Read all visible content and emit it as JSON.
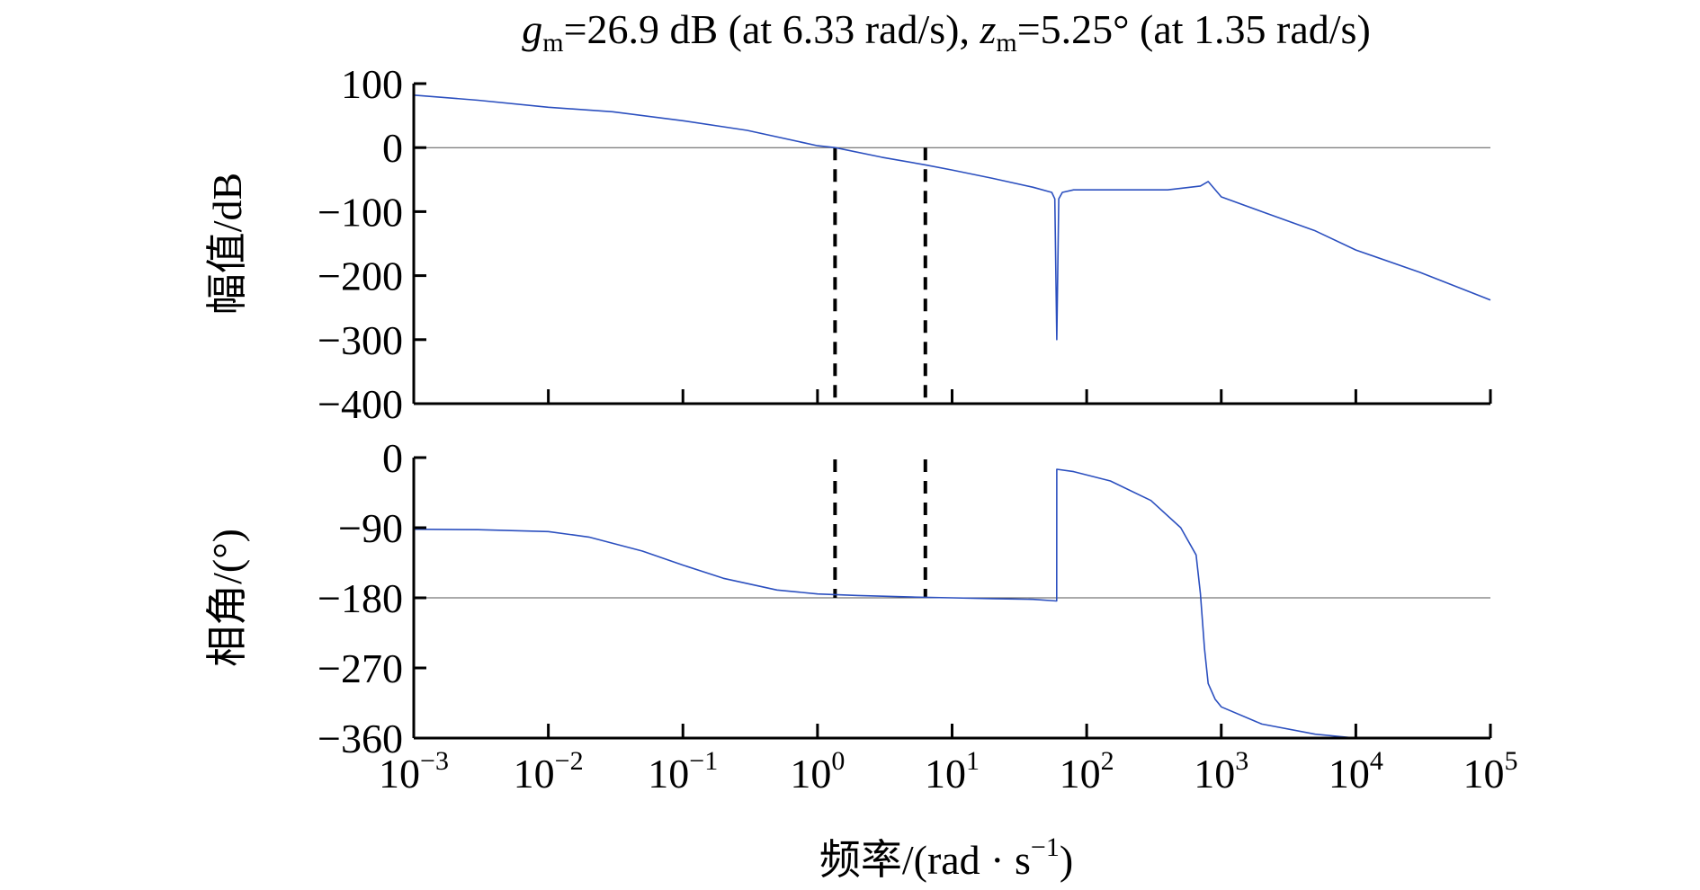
{
  "chart_data": {
    "type": "line",
    "title": {
      "g_symbol": "g",
      "g_sub": "m",
      "g_text": "=26.9 dB (at 6.33 rad/s), ",
      "z_symbol": "z",
      "z_sub": "m",
      "z_text": "=5.25° (at 1.35 rad/s)"
    },
    "xlabel": {
      "text": "频率/(rad · s",
      "sup": "−1",
      "close": ")"
    },
    "x_scale": "log",
    "xlim": [
      0.001,
      100000
    ],
    "x_ticks": [
      {
        "value": 0.001,
        "base": "10",
        "exp": "−3"
      },
      {
        "value": 0.01,
        "base": "10",
        "exp": "−2"
      },
      {
        "value": 0.1,
        "base": "10",
        "exp": "−1"
      },
      {
        "value": 1,
        "base": "10",
        "exp": "0"
      },
      {
        "value": 10,
        "base": "10",
        "exp": "1"
      },
      {
        "value": 100,
        "base": "10",
        "exp": "2"
      },
      {
        "value": 1000,
        "base": "10",
        "exp": "3"
      },
      {
        "value": 10000,
        "base": "10",
        "exp": "4"
      },
      {
        "value": 100000,
        "base": "10",
        "exp": "5"
      }
    ],
    "gain_crossover_freq": 1.35,
    "phase_crossover_freq": 6.33,
    "line_color": "#2b4fbf",
    "panels": [
      {
        "id": "magnitude",
        "ylabel": "幅值/dB",
        "ylim": [
          -400,
          100
        ],
        "y_ticks": [
          100,
          0,
          -100,
          -200,
          -300,
          -400
        ],
        "y_tick_labels": [
          "100",
          "0",
          "−100",
          "−200",
          "−300",
          "−400"
        ],
        "reference_line": 0,
        "series": {
          "x": [
            0.001,
            0.003,
            0.01,
            0.03,
            0.1,
            0.3,
            1,
            1.35,
            3,
            6.33,
            10,
            20,
            40,
            55,
            58,
            60,
            62,
            66,
            80,
            150,
            400,
            700,
            800,
            1000,
            2000,
            5000,
            10000,
            30000,
            100000
          ],
          "y": [
            82,
            74,
            63,
            56,
            42,
            27,
            3,
            0,
            -15,
            -27,
            -35,
            -48,
            -62,
            -70,
            -80,
            -300,
            -80,
            -70,
            -66,
            -66,
            -66,
            -60,
            -53,
            -77,
            -100,
            -130,
            -160,
            -195,
            -238
          ]
        }
      },
      {
        "id": "phase",
        "ylabel": "相角/(°)",
        "ylim": [
          -360,
          0
        ],
        "y_ticks": [
          0,
          -90,
          -180,
          -270,
          -360
        ],
        "y_tick_labels": [
          "0",
          "−90",
          "−180",
          "−270",
          "−360"
        ],
        "reference_line": -180,
        "series": {
          "x": [
            0.001,
            0.003,
            0.01,
            0.02,
            0.05,
            0.1,
            0.2,
            0.5,
            1,
            2,
            5,
            10,
            20,
            40,
            59.9,
            60,
            60.1,
            80,
            150,
            300,
            500,
            650,
            700,
            750,
            800,
            900,
            1000,
            2000,
            5000,
            10000
          ],
          "y": [
            -92,
            -92.5,
            -95,
            -102,
            -120,
            -138,
            -155,
            -170,
            -175,
            -177,
            -179,
            -180,
            -181,
            -182,
            -184,
            -15,
            -15,
            -18,
            -30,
            -55,
            -90,
            -125,
            -175,
            -245,
            -290,
            -310,
            -320,
            -342,
            -355,
            -360
          ]
        }
      }
    ]
  }
}
